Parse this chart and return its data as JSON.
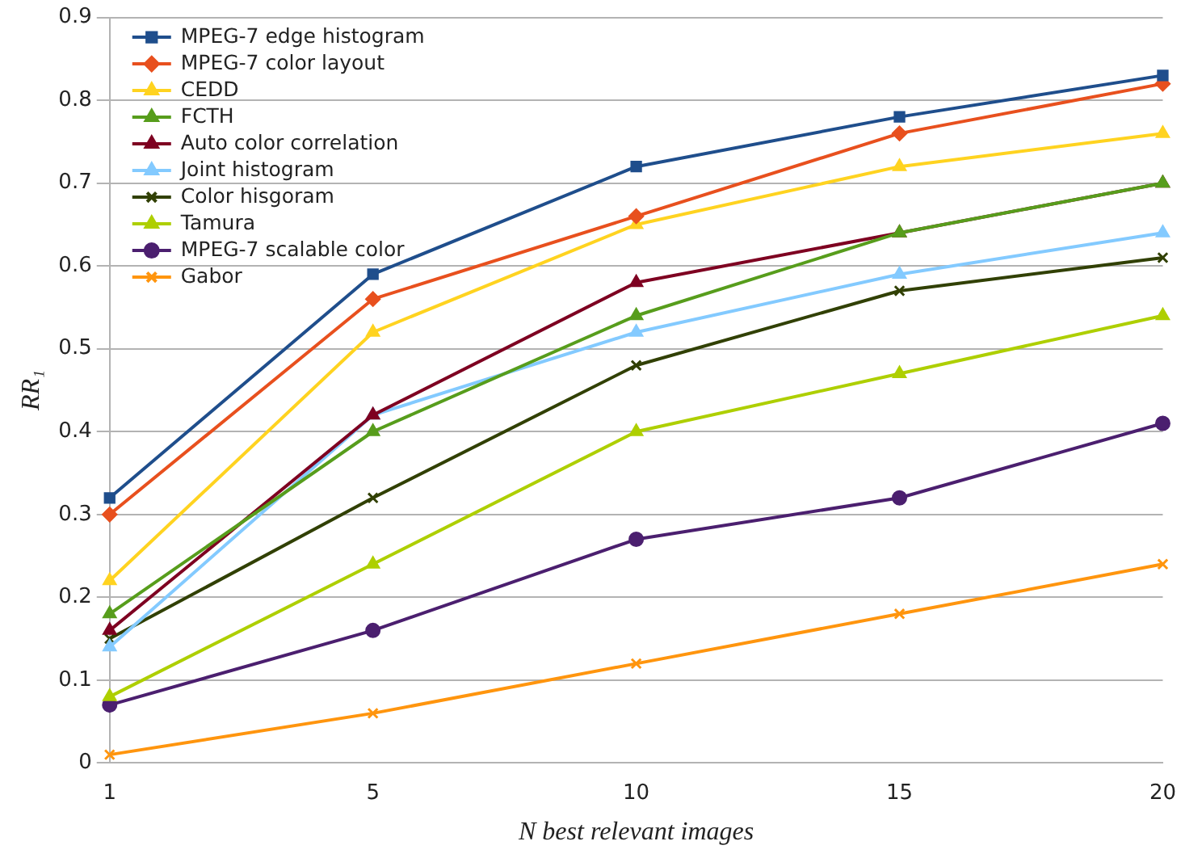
{
  "chart_data": {
    "type": "line",
    "xlabel": "N best relevant images",
    "ylabel": "RR₁",
    "categories": [
      "1",
      "5",
      "10",
      "15",
      "20"
    ],
    "ylim": [
      0,
      0.9
    ],
    "yticks": [
      0,
      0.1,
      0.2,
      0.3,
      0.4,
      0.5,
      0.6,
      0.7,
      0.8,
      0.9
    ],
    "grid": "y",
    "legend": "top left",
    "line_style": "solid",
    "series": [
      {
        "name": "MPEG-7 edge histogram",
        "color": "#1f4e8c",
        "marker": "square",
        "values": [
          0.32,
          0.59,
          0.72,
          0.78,
          0.83
        ]
      },
      {
        "name": "MPEG-7 color layout",
        "color": "#e8501e",
        "marker": "diamond",
        "values": [
          0.3,
          0.56,
          0.66,
          0.76,
          0.82
        ]
      },
      {
        "name": "CEDD",
        "color": "#ffd320",
        "marker": "triangle",
        "values": [
          0.22,
          0.52,
          0.65,
          0.72,
          0.76
        ]
      },
      {
        "name": "FCTH",
        "color": "#579d1c",
        "marker": "triangle",
        "values": [
          0.18,
          0.4,
          0.54,
          0.64,
          0.7
        ]
      },
      {
        "name": "Auto color correlation",
        "color": "#7e0021",
        "marker": "triangle",
        "values": [
          0.16,
          0.42,
          0.58,
          0.64,
          0.7
        ]
      },
      {
        "name": "Joint histogram",
        "color": "#83caff",
        "marker": "triangle",
        "values": [
          0.14,
          0.42,
          0.52,
          0.59,
          0.64
        ]
      },
      {
        "name": "Color hisgoram",
        "color": "#314004",
        "marker": "cross",
        "values": [
          0.15,
          0.32,
          0.48,
          0.57,
          0.61
        ]
      },
      {
        "name": "Tamura",
        "color": "#aecf00",
        "marker": "triangle",
        "values": [
          0.08,
          0.24,
          0.4,
          0.47,
          0.54
        ]
      },
      {
        "name": "MPEG-7 scalable color",
        "color": "#4b1f6f",
        "marker": "circle",
        "values": [
          0.07,
          0.16,
          0.27,
          0.32,
          0.41
        ]
      },
      {
        "name": "Gabor",
        "color": "#ff950e",
        "marker": "cross",
        "values": [
          0.01,
          0.06,
          0.12,
          0.18,
          0.24
        ]
      }
    ]
  }
}
